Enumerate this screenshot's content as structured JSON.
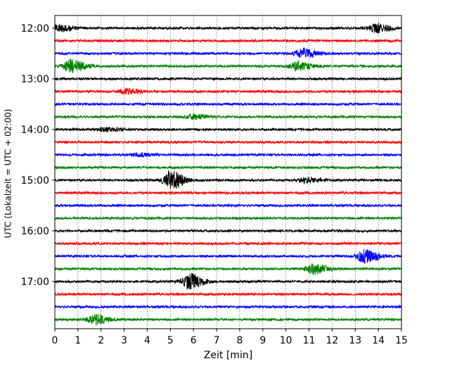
{
  "chart_data": {
    "type": "line",
    "title": "",
    "xlabel": "Zeit  [min]",
    "ylabel": "UTC (Lokalzeit = UTC + 02:00)",
    "xlim": [
      0,
      15
    ],
    "x_ticks": [
      "0",
      "1",
      "2",
      "3",
      "4",
      "5",
      "6",
      "7",
      "8",
      "9",
      "10",
      "11",
      "12",
      "13",
      "14",
      "15"
    ],
    "y_ticks": [
      "12:00",
      "13:00",
      "14:00",
      "15:00",
      "16:00",
      "17:00"
    ],
    "grid": "vertical dotted lines at each minute",
    "trace_color_cycle": [
      "#000000",
      "#ff0000",
      "#0000ff",
      "#008000"
    ],
    "series": [
      {
        "start": "12:00",
        "events": [
          {
            "t": 0.2,
            "amp": 5
          },
          {
            "t": 13.9,
            "amp": 6
          }
        ]
      },
      {
        "start": "12:15",
        "events": []
      },
      {
        "start": "12:30",
        "events": [
          {
            "t": 10.7,
            "amp": 7
          }
        ]
      },
      {
        "start": "12:45",
        "events": [
          {
            "t": 0.7,
            "amp": 9
          },
          {
            "t": 10.5,
            "amp": 6
          }
        ]
      },
      {
        "start": "13:00",
        "events": []
      },
      {
        "start": "13:15",
        "events": [
          {
            "t": 3.1,
            "amp": 4
          }
        ]
      },
      {
        "start": "13:30",
        "events": []
      },
      {
        "start": "13:45",
        "events": [
          {
            "t": 6.0,
            "amp": 3
          }
        ]
      },
      {
        "start": "14:00",
        "events": [
          {
            "t": 2.2,
            "amp": 3
          }
        ]
      },
      {
        "start": "14:15",
        "events": []
      },
      {
        "start": "14:30",
        "events": [
          {
            "t": 3.6,
            "amp": 2
          }
        ]
      },
      {
        "start": "14:45",
        "events": []
      },
      {
        "start": "15:00",
        "events": [
          {
            "t": 5.0,
            "amp": 13
          },
          {
            "t": 10.9,
            "amp": 4
          }
        ]
      },
      {
        "start": "15:15",
        "events": []
      },
      {
        "start": "15:30",
        "events": []
      },
      {
        "start": "15:45",
        "events": []
      },
      {
        "start": "16:00",
        "events": []
      },
      {
        "start": "16:15",
        "events": []
      },
      {
        "start": "16:30",
        "events": [
          {
            "t": 13.4,
            "amp": 9
          }
        ]
      },
      {
        "start": "16:45",
        "events": [
          {
            "t": 11.2,
            "amp": 7
          }
        ]
      },
      {
        "start": "17:00",
        "events": [
          {
            "t": 5.8,
            "amp": 11
          }
        ]
      },
      {
        "start": "17:15",
        "events": []
      },
      {
        "start": "17:30",
        "events": []
      },
      {
        "start": "17:45",
        "events": [
          {
            "t": 1.7,
            "amp": 7
          }
        ]
      }
    ]
  }
}
